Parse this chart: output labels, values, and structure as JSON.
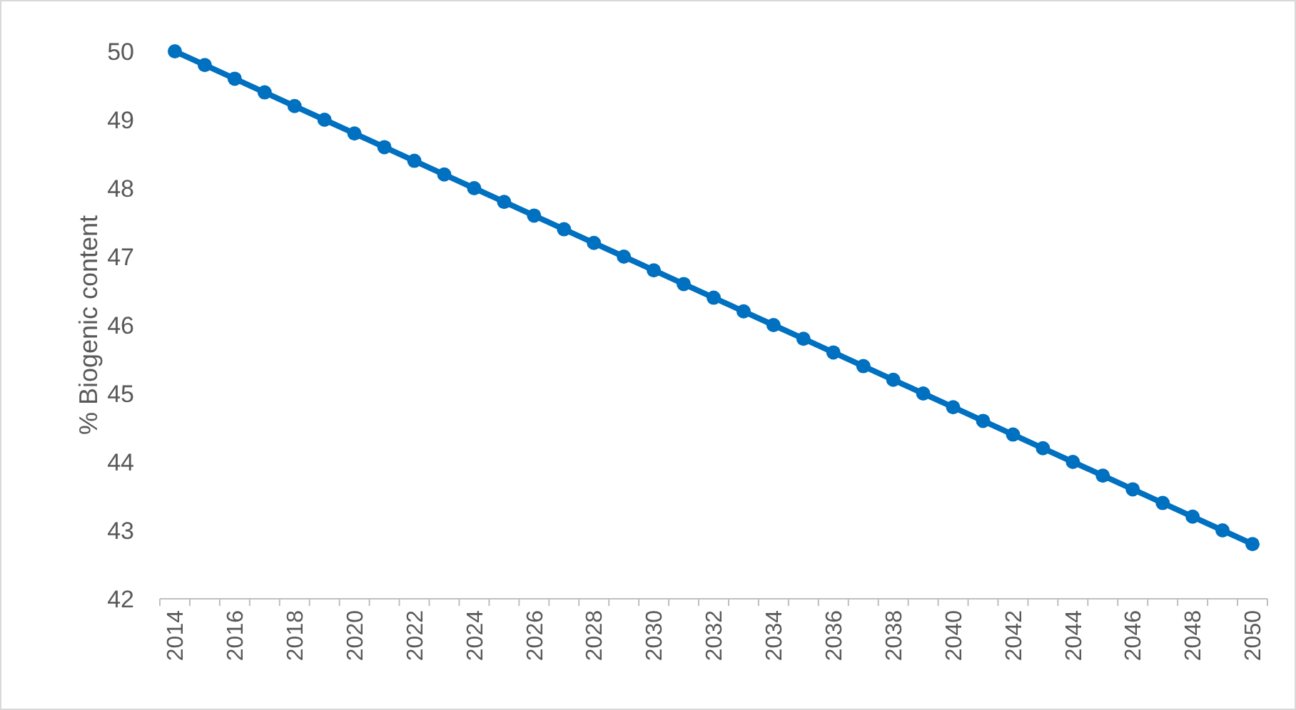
{
  "chart_data": {
    "type": "line",
    "ylabel": "% Biogenic content",
    "categories": [
      "2014",
      null,
      "2016",
      null,
      "2018",
      null,
      "2020",
      null,
      "2022",
      null,
      "2024",
      null,
      "2026",
      null,
      "2028",
      null,
      "2030",
      null,
      "2032",
      null,
      "2034",
      null,
      "2036",
      null,
      "2038",
      null,
      "2040",
      null,
      "2042",
      null,
      "2044",
      null,
      "2046",
      null,
      "2048",
      null,
      "2050"
    ],
    "series": [
      {
        "color": "#0070c0",
        "values": [
          50,
          49.8,
          49.6,
          49.4,
          49.2,
          49,
          48.8,
          48.6,
          48.4,
          48.2,
          48,
          47.8,
          47.6,
          47.4,
          47.2,
          47,
          46.8,
          46.6,
          46.4,
          46.2,
          46,
          45.8,
          45.6,
          45.4,
          45.2,
          45,
          44.8,
          44.6,
          44.4,
          44.2,
          44,
          43.8,
          43.6,
          43.4,
          43.2,
          43,
          42.8
        ]
      }
    ],
    "ylim": [
      42,
      50
    ],
    "yticks": [
      42,
      43,
      44,
      45,
      46,
      47,
      48,
      49,
      50
    ],
    "marker": "circle",
    "line_style": "solid"
  }
}
